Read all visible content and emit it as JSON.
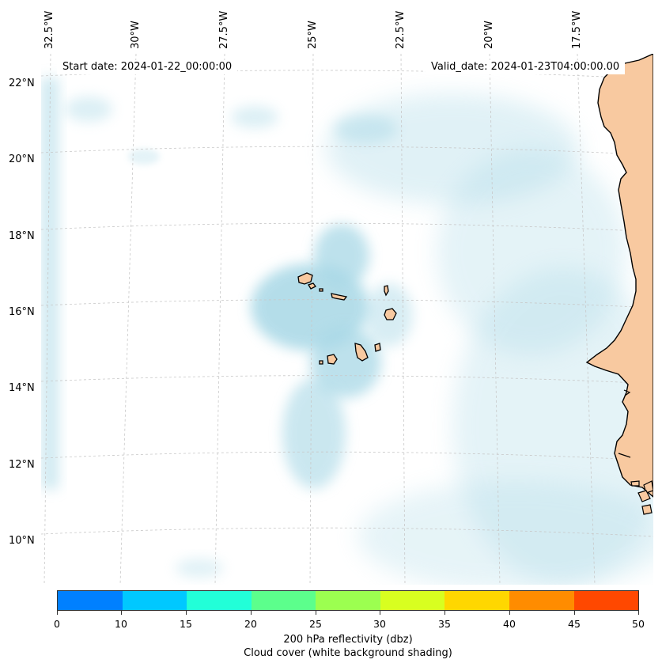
{
  "map": {
    "region": "Cape Verde Islands and West African coast",
    "longitude_labels": [
      "32.5°W",
      "30°W",
      "27.5°W",
      "25°W",
      "22.5°W",
      "20°W",
      "17.5°W"
    ],
    "latitude_labels": [
      "22°N",
      "20°N",
      "18°N",
      "16°N",
      "14°N",
      "12°N",
      "10°N"
    ],
    "start_date": "Start date: 2024-01-22_00:00:00",
    "valid_date": "Valid_date: 2024-01-23T04:00:00.00"
  },
  "colorbar": {
    "ticks": [
      "0",
      "10",
      "15",
      "20",
      "25",
      "30",
      "35",
      "40",
      "45",
      "50"
    ],
    "colors": [
      "#0080ff",
      "#00c8ff",
      "#22ffd8",
      "#5cff8c",
      "#9cff50",
      "#d8ff20",
      "#ffd700",
      "#ff8c00",
      "#ff4800"
    ],
    "label_line1": "200 hPa reflectivity (dbz)",
    "label_line2": "Cloud cover (white background shading)"
  },
  "colors": {
    "cloud": "#a8d8e6",
    "land": "#f8c9a0",
    "gridline": "#c8c8c8"
  }
}
